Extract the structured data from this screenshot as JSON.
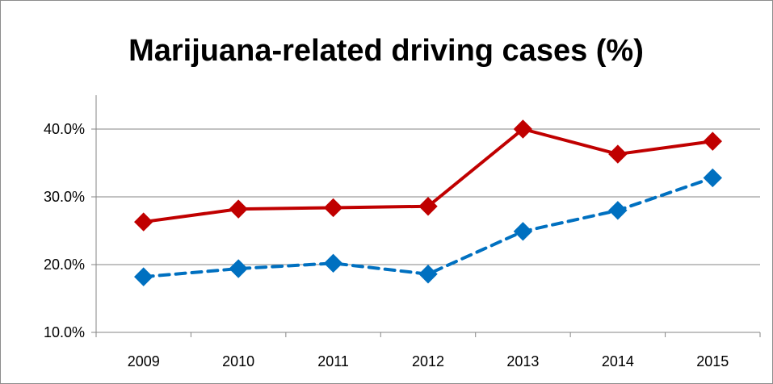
{
  "chart_data": {
    "type": "line",
    "title": "Marijuana-related driving cases (%)",
    "xlabel": "",
    "ylabel": "",
    "categories": [
      "2009",
      "2010",
      "2011",
      "2012",
      "2013",
      "2014",
      "2015"
    ],
    "y_ticks": [
      "10.0%",
      "20.0%",
      "30.0%",
      "40.0%"
    ],
    "ylim": [
      10,
      45
    ],
    "grid": true,
    "legend": "none",
    "series": [
      {
        "values": [
          26.3,
          28.2,
          28.4,
          28.6,
          40.0,
          36.3,
          38.2
        ],
        "color": "#c00000",
        "line_style": "solid",
        "marker": "diamond"
      },
      {
        "values": [
          18.2,
          19.4,
          20.2,
          18.6,
          24.9,
          28.0,
          32.8
        ],
        "color": "#0070c0",
        "line_style": "dashed",
        "marker": "diamond"
      }
    ]
  }
}
